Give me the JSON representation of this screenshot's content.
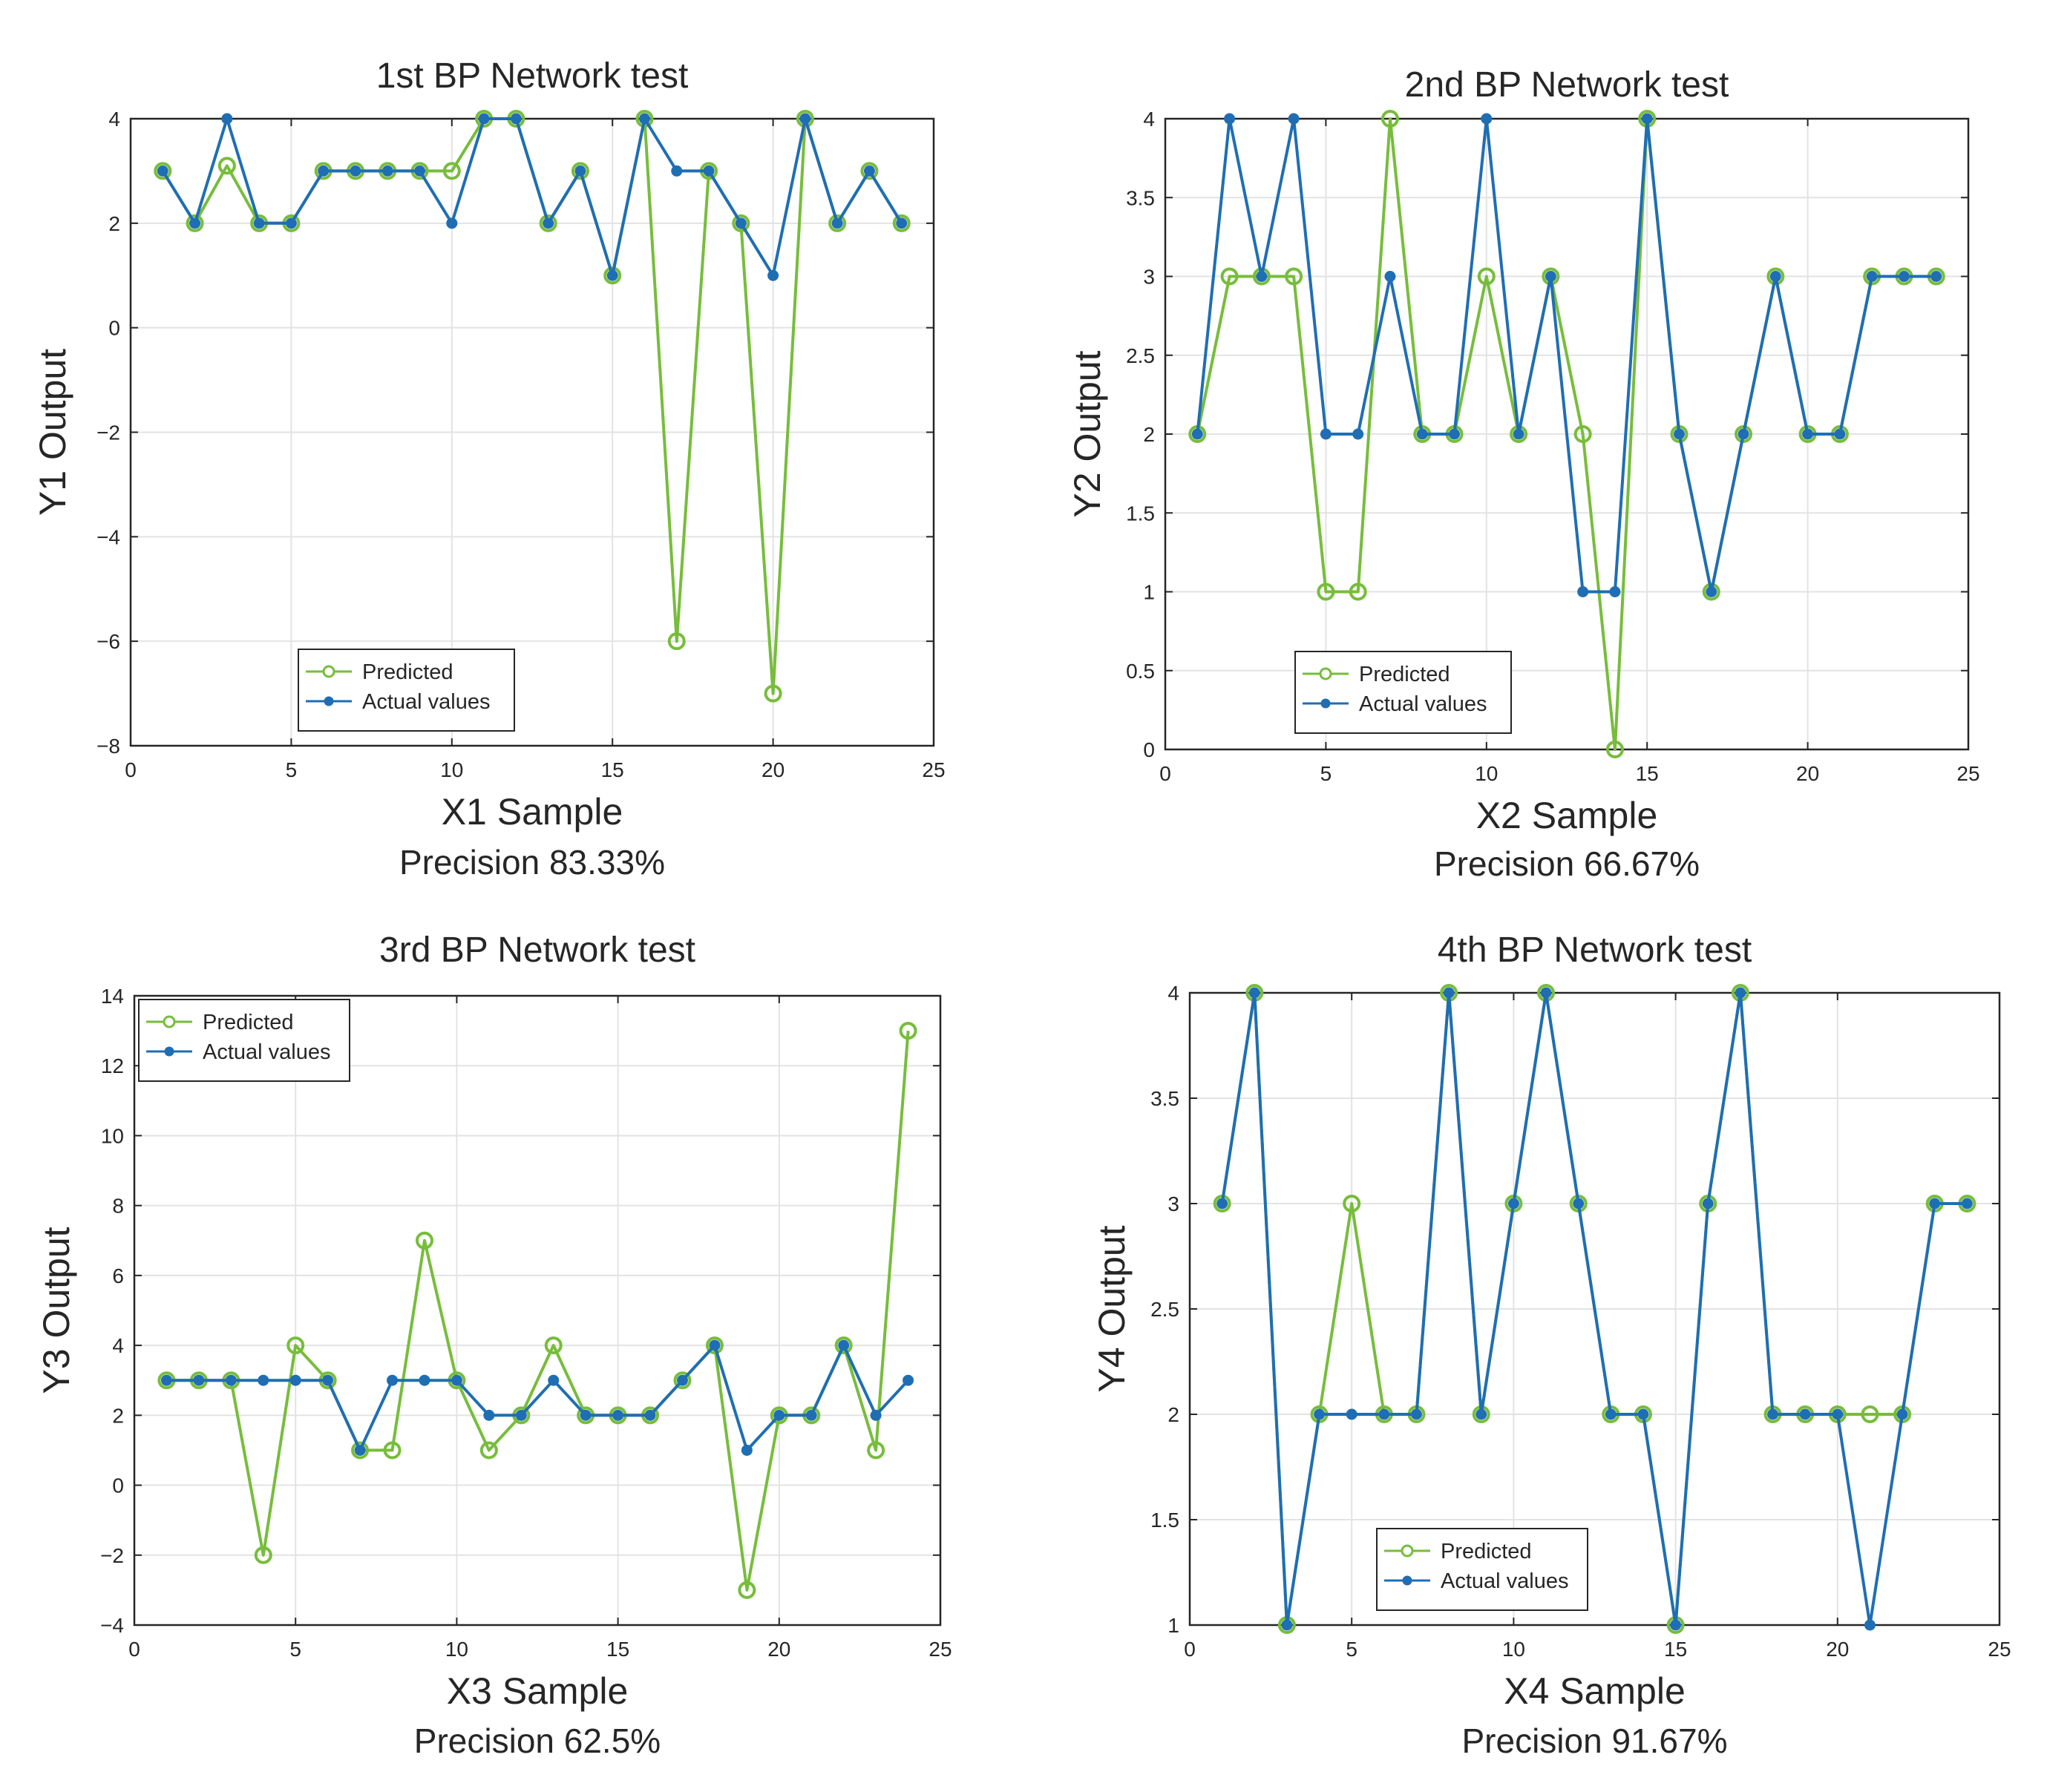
{
  "colors": {
    "predicted": "#77BD3B",
    "actual": "#1F6EB4",
    "grid": "#E3E3E3",
    "axis": "#262626"
  },
  "chart_data": [
    {
      "type": "line",
      "title": "1st BP Network test",
      "xlabel": "X1 Sample",
      "ylabel": "Y1 Output",
      "caption": "Precision 83.33%",
      "xlim": [
        0,
        25
      ],
      "ylim": [
        -8,
        4
      ],
      "xticks": [
        0,
        5,
        10,
        15,
        20,
        25
      ],
      "yticks": [
        -8,
        -6,
        -4,
        -2,
        0,
        2,
        4
      ],
      "grid": true,
      "legend_position": "bottom-left",
      "x": [
        1,
        2,
        3,
        4,
        5,
        6,
        7,
        8,
        9,
        10,
        11,
        12,
        13,
        14,
        15,
        16,
        17,
        18,
        19,
        20,
        21,
        22,
        23,
        24
      ],
      "series": [
        {
          "name": "Predicted",
          "marker": "open-circle",
          "values": [
            3,
            2,
            3.1,
            2,
            2,
            3,
            3,
            3,
            3,
            3,
            4,
            4,
            2,
            3,
            1,
            4,
            -6,
            3,
            2,
            -7,
            4,
            2,
            3,
            2
          ]
        },
        {
          "name": "Actual values",
          "marker": "filled-dot",
          "values": [
            3,
            2,
            4,
            2,
            2,
            3,
            3,
            3,
            3,
            2,
            4,
            4,
            2,
            3,
            1,
            4,
            3,
            3,
            2,
            1,
            4,
            2,
            3,
            2
          ]
        }
      ]
    },
    {
      "type": "line",
      "title": "2nd BP Network test",
      "xlabel": "X2 Sample",
      "ylabel": "Y2 Output",
      "caption": "Precision 66.67%",
      "xlim": [
        0,
        25
      ],
      "ylim": [
        0,
        4
      ],
      "xticks": [
        0,
        5,
        10,
        15,
        20,
        25
      ],
      "yticks": [
        0,
        0.5,
        1,
        1.5,
        2,
        2.5,
        3,
        3.5,
        4
      ],
      "grid": true,
      "legend_position": "bottom-center",
      "x": [
        1,
        2,
        3,
        4,
        5,
        6,
        7,
        8,
        9,
        10,
        11,
        12,
        13,
        14,
        15,
        16,
        17,
        18,
        19,
        20,
        21,
        22,
        23,
        24
      ],
      "series": [
        {
          "name": "Predicted",
          "marker": "open-circle",
          "values": [
            2,
            3,
            3,
            3,
            1,
            1,
            4,
            2,
            2,
            3,
            2,
            3,
            2,
            0,
            4,
            2,
            1,
            2,
            3,
            2,
            2,
            3,
            3,
            3
          ]
        },
        {
          "name": "Actual values",
          "marker": "filled-dot",
          "values": [
            2,
            4,
            3,
            4,
            2,
            2,
            3,
            2,
            2,
            4,
            2,
            3,
            1,
            1,
            4,
            2,
            1,
            2,
            3,
            2,
            2,
            3,
            3,
            3
          ]
        }
      ]
    },
    {
      "type": "line",
      "title": "3rd BP Network test",
      "xlabel": "X3 Sample",
      "ylabel": "Y3 Output",
      "caption": "Precision 62.5%",
      "xlim": [
        0,
        25
      ],
      "ylim": [
        -4,
        14
      ],
      "xticks": [
        0,
        5,
        10,
        15,
        20,
        25
      ],
      "yticks": [
        -4,
        -2,
        0,
        2,
        4,
        6,
        8,
        10,
        12,
        14
      ],
      "grid": true,
      "legend_position": "top-left",
      "x": [
        1,
        2,
        3,
        4,
        5,
        6,
        7,
        8,
        9,
        10,
        11,
        12,
        13,
        14,
        15,
        16,
        17,
        18,
        19,
        20,
        21,
        22,
        23,
        24
      ],
      "series": [
        {
          "name": "Predicted",
          "marker": "open-circle",
          "values": [
            3,
            3,
            3,
            -2,
            4,
            3,
            1,
            1,
            7,
            3,
            1,
            2,
            4,
            2,
            2,
            2,
            3,
            4,
            -3,
            2,
            2,
            4,
            1,
            13
          ]
        },
        {
          "name": "Actual values",
          "marker": "filled-dot",
          "values": [
            3,
            3,
            3,
            3,
            3,
            3,
            1,
            3,
            3,
            3,
            2,
            2,
            3,
            2,
            2,
            2,
            3,
            4,
            1,
            2,
            2,
            4,
            2,
            3
          ]
        }
      ]
    },
    {
      "type": "line",
      "title": "4th BP Network test",
      "xlabel": "X4 Sample",
      "ylabel": "Y4 Output",
      "caption": "Precision 91.67%",
      "xlim": [
        0,
        25
      ],
      "ylim": [
        1,
        4
      ],
      "xticks": [
        0,
        5,
        10,
        15,
        20,
        25
      ],
      "yticks": [
        1,
        1.5,
        2,
        2.5,
        3,
        3.5,
        4
      ],
      "grid": true,
      "legend_position": "bottom-center",
      "x": [
        1,
        2,
        3,
        4,
        5,
        6,
        7,
        8,
        9,
        10,
        11,
        12,
        13,
        14,
        15,
        16,
        17,
        18,
        19,
        20,
        21,
        22,
        23,
        24
      ],
      "series": [
        {
          "name": "Predicted",
          "marker": "open-circle",
          "values": [
            3,
            4,
            1,
            2,
            3,
            2,
            2,
            4,
            2,
            3,
            4,
            3,
            2,
            2,
            1,
            3,
            4,
            2,
            2,
            2,
            2,
            2,
            3,
            3
          ]
        },
        {
          "name": "Actual values",
          "marker": "filled-dot",
          "values": [
            3,
            4,
            1,
            2,
            2,
            2,
            2,
            4,
            2,
            3,
            4,
            3,
            2,
            2,
            1,
            3,
            4,
            2,
            2,
            2,
            1,
            2,
            3,
            3
          ]
        }
      ]
    }
  ]
}
